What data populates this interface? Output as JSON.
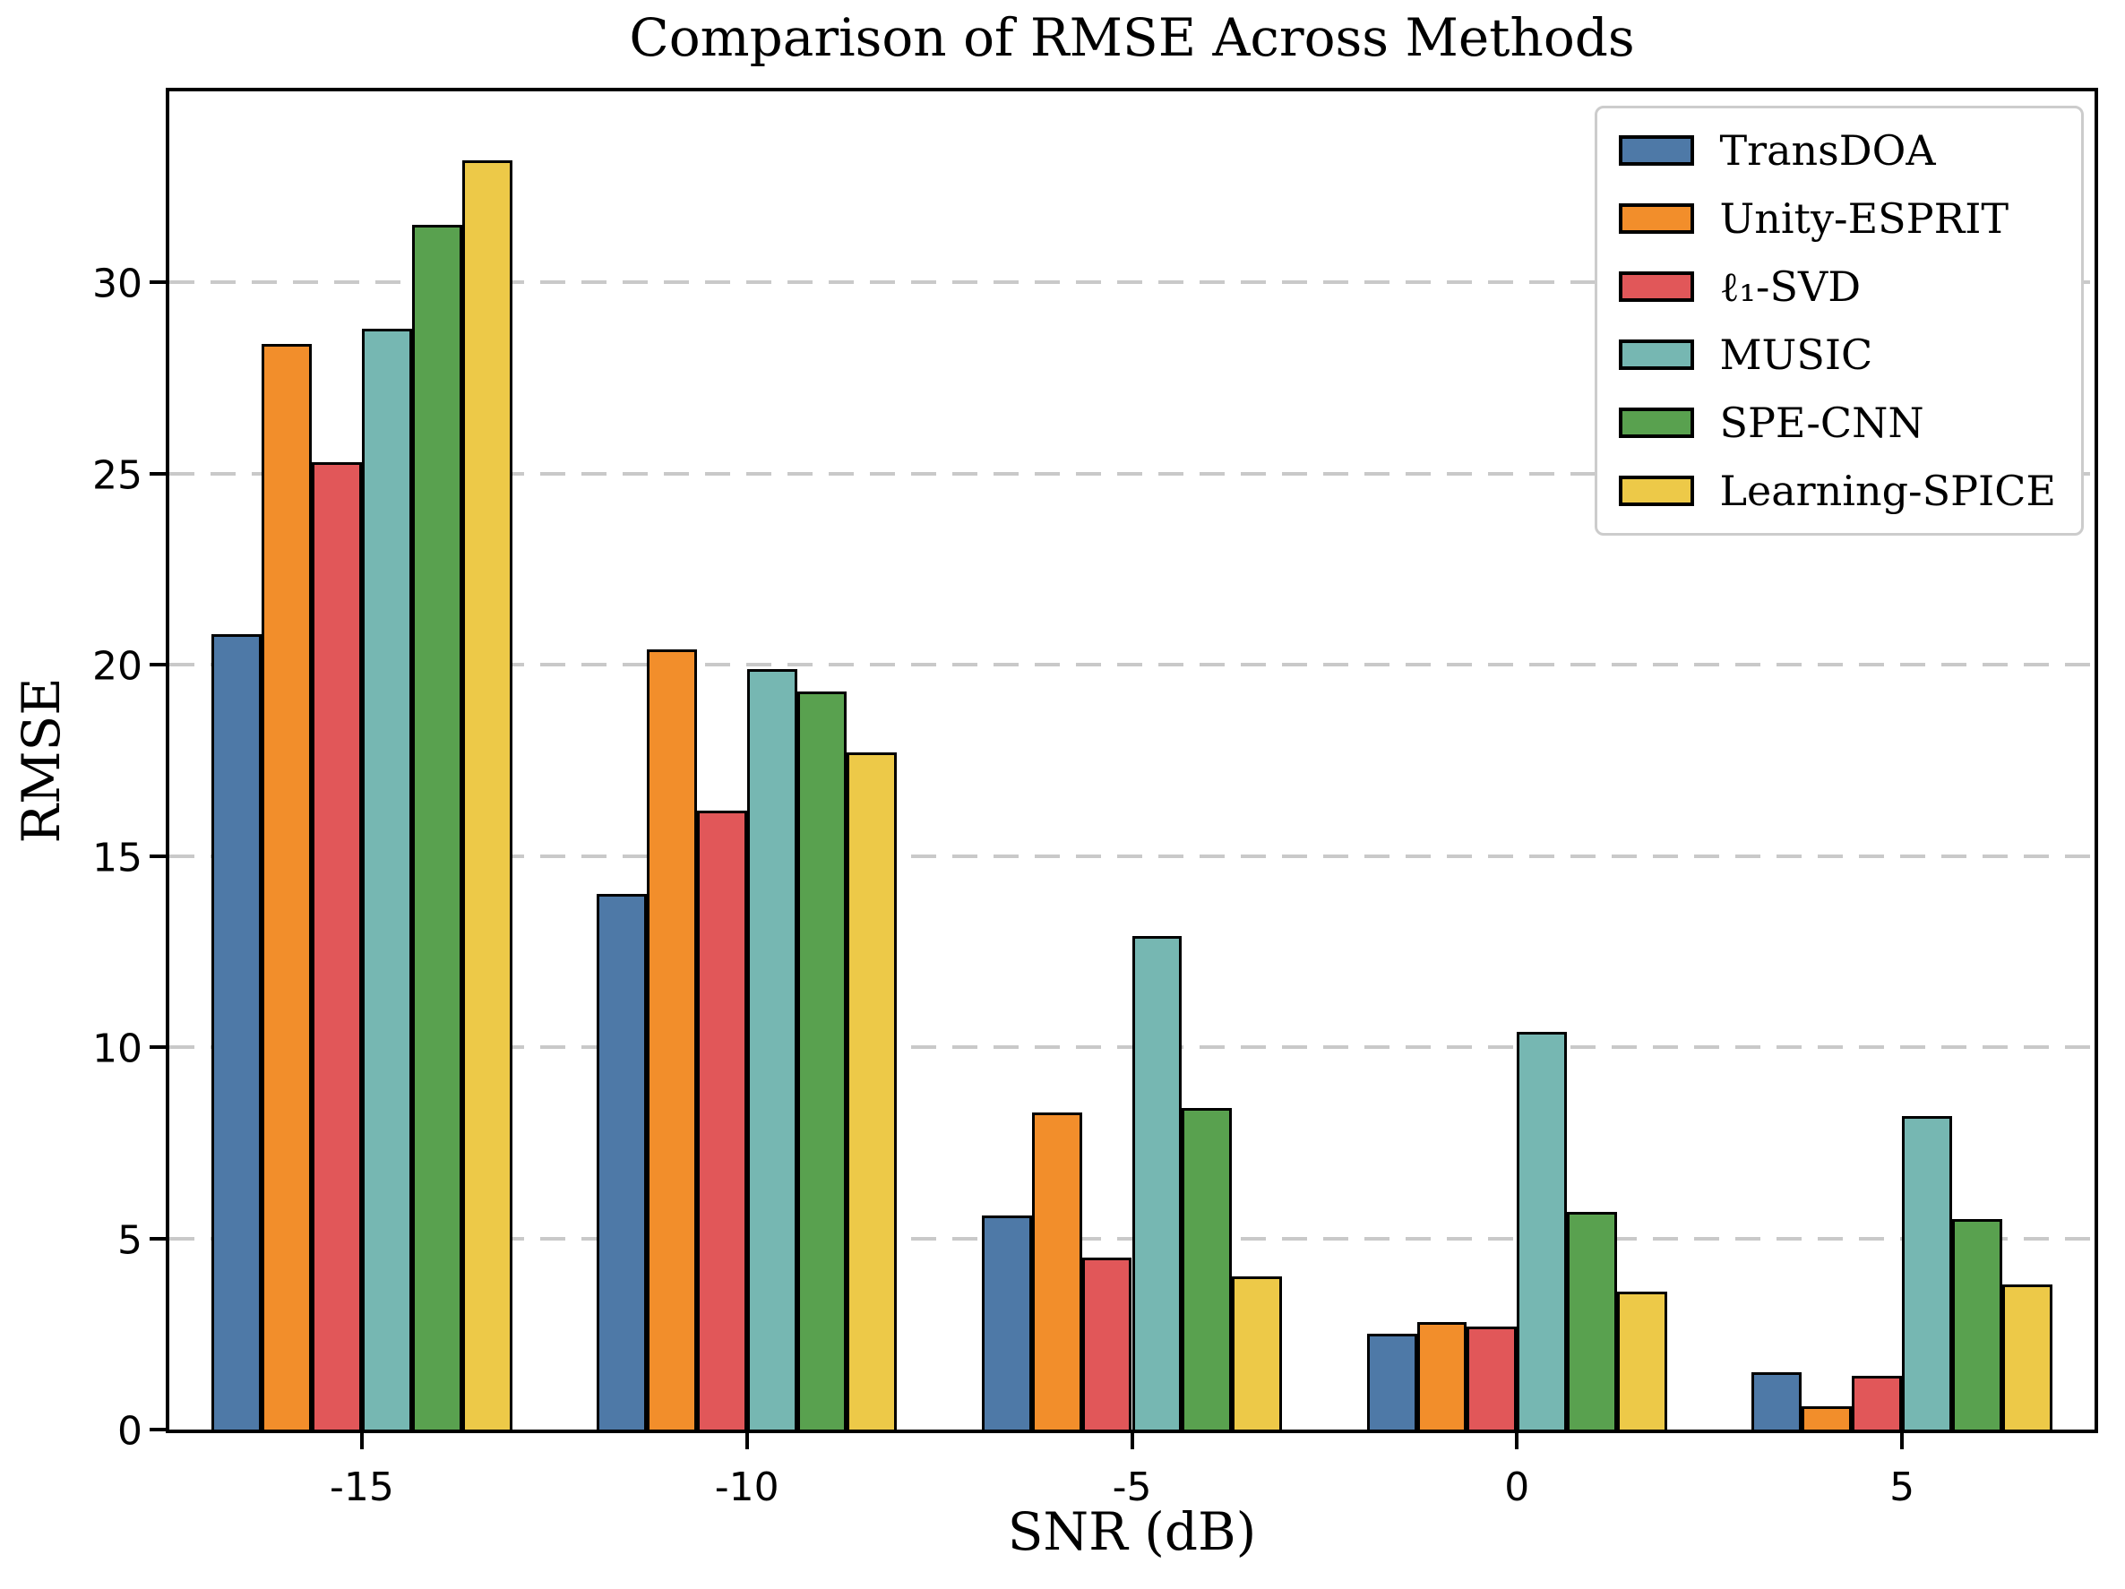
{
  "chart_data": {
    "type": "bar",
    "title": "Comparison of RMSE Across Methods",
    "xlabel": "SNR (dB)",
    "ylabel": "RMSE",
    "categories": [
      "-15",
      "-10",
      "-5",
      "0",
      "5"
    ],
    "series": [
      {
        "name": "TransDOA",
        "color": "#4E79A7",
        "values": [
          20.8,
          14.0,
          5.6,
          2.5,
          1.5
        ]
      },
      {
        "name": "Unity-ESPRIT",
        "color": "#F28E2B",
        "values": [
          28.4,
          20.4,
          8.3,
          2.8,
          0.6
        ]
      },
      {
        "name": "ℓ₁-SVD",
        "color": "#E15759",
        "values": [
          25.3,
          16.2,
          4.5,
          2.7,
          1.4
        ]
      },
      {
        "name": "MUSIC",
        "color": "#76B7B2",
        "values": [
          28.8,
          19.9,
          12.9,
          10.4,
          8.2
        ]
      },
      {
        "name": "SPE-CNN",
        "color": "#59A14F",
        "values": [
          31.5,
          19.3,
          8.4,
          5.7,
          5.5
        ]
      },
      {
        "name": "Learning-SPICE",
        "color": "#EDC948",
        "values": [
          33.2,
          17.7,
          4.0,
          3.6,
          3.8
        ]
      }
    ],
    "ylim": [
      0,
      35
    ],
    "yticks": [
      0,
      5,
      10,
      15,
      20,
      25,
      30
    ],
    "grid": true,
    "grid_style": "dashed",
    "grid_color": "#c9c9c9",
    "bar_edge_color": "#000000",
    "legend_position": "upper right",
    "background_color": "#ffffff"
  }
}
